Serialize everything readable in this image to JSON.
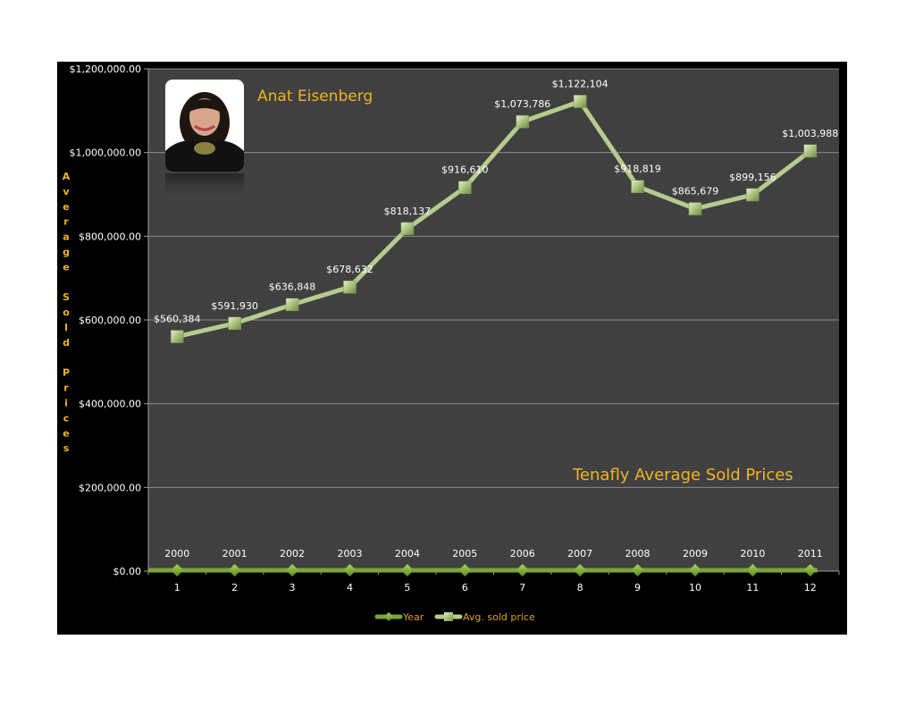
{
  "colors": {
    "frame_bg": "#000000",
    "plot_bg": "#404040",
    "gridline": "#8a8a8a",
    "accent_gold": "#f0b323",
    "price_line": "#b5cc8e",
    "price_marker": "#a9c27c",
    "year_line": "#7aa33a",
    "year_marker": "#8fbf45"
  },
  "agent_name": "Anat Eisenberg",
  "chart_title": "Tenafly Average Sold Prices",
  "y_axis_title": "Average Sold Prices",
  "legend": [
    {
      "name": "Year"
    },
    {
      "name": "Avg. sold price"
    }
  ],
  "chart_data": {
    "type": "line",
    "title": "Tenafly Average Sold Prices",
    "xlabel": "",
    "ylabel": "Average Sold Prices",
    "ylim": [
      0,
      1200000
    ],
    "yticks": [
      "$0.00",
      "$200,000.00",
      "$400,000.00",
      "$600,000.00",
      "$800,000.00",
      "$1,000,000.00",
      "$1,200,000.00"
    ],
    "categories": [
      "1",
      "2",
      "3",
      "4",
      "5",
      "6",
      "7",
      "8",
      "9",
      "10",
      "11",
      "12"
    ],
    "grid": true,
    "legend_position": "bottom",
    "series": [
      {
        "name": "Year",
        "values": [
          2000,
          2001,
          2002,
          2003,
          2004,
          2005,
          2006,
          2007,
          2008,
          2009,
          2010,
          2011
        ],
        "labels": [
          "2000",
          "2001",
          "2002",
          "2003",
          "2004",
          "2005",
          "2006",
          "2007",
          "2008",
          "2009",
          "2010",
          "2011"
        ]
      },
      {
        "name": "Avg. sold price",
        "values": [
          560384,
          591930,
          636848,
          678632,
          818137,
          916610,
          1073786,
          1122104,
          918819,
          865679,
          899156,
          1003988
        ],
        "labels": [
          "$560,384",
          "$591,930",
          "$636,848",
          "$678,632",
          "$818,137",
          "$916,610",
          "$1,073,786",
          "$1,122,104",
          "$918,819",
          "$865,679",
          "$899,156",
          "$1,003,988"
        ]
      }
    ]
  }
}
